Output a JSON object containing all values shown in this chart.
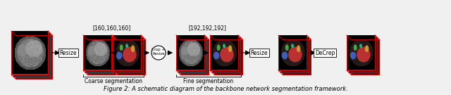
{
  "title": "Figure 2: A schematic diagram of the backbone network segmentation framework.",
  "title_fontsize": 6,
  "background_color": "#f0f0f0",
  "label_160": "[160,160,160]",
  "label_192": "[192,192,192]",
  "coarse_seg_label": "Coarse segmentation",
  "fine_seg_label": "Fine segmentation",
  "resize_label": "Resize",
  "resize2_label": "Resize",
  "crop_resize_label": "Crop +\nResize",
  "decrep_label": "DeCrep",
  "text_color": "#000000",
  "red_edge": "#cc0000",
  "ct_dark": "#1a1a1a",
  "ct_mid": "#666666",
  "seg_red": "#cc3333"
}
